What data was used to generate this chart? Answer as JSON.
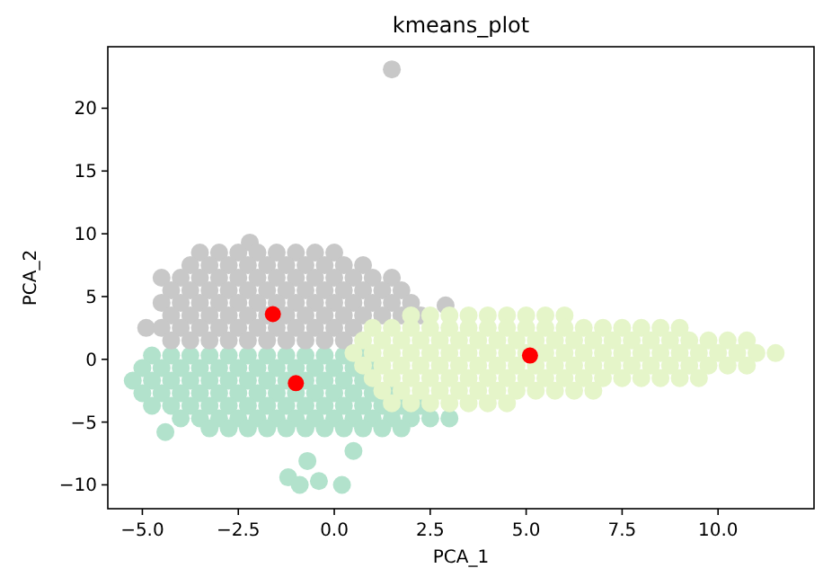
{
  "chart_data": {
    "type": "scatter",
    "title": "kmeans_plot",
    "xlabel": "PCA_1",
    "ylabel": "PCA_2",
    "marker": "circle",
    "grid": false,
    "xlim": [
      -5.9,
      12.5
    ],
    "ylim": [
      -11.9,
      24.9
    ],
    "xticks": [
      {
        "value": -5,
        "label": "−5.0"
      },
      {
        "value": -2.5,
        "label": "−2.5"
      },
      {
        "value": 0,
        "label": "0.0"
      },
      {
        "value": 2.5,
        "label": "2.5"
      },
      {
        "value": 5,
        "label": "5.0"
      },
      {
        "value": 7.5,
        "label": "7.5"
      },
      {
        "value": 10,
        "label": "10.0"
      }
    ],
    "yticks": [
      {
        "value": -10,
        "label": "−10"
      },
      {
        "value": -5,
        "label": "−5"
      },
      0,
      5,
      10,
      15,
      20
    ],
    "series": [
      {
        "color": "#b2e2cc",
        "x": [
          -4.75,
          -4.25,
          -3.75,
          -3.25,
          -2.75,
          -2.25,
          -1.75,
          -1.25,
          -0.75,
          -0.25,
          0.25,
          0.75,
          -5,
          -4.5,
          -4,
          -3.5,
          -3,
          -2.5,
          -2,
          -1.5,
          -1,
          -0.5,
          0,
          0.5,
          1,
          -5.25,
          -4.75,
          -4.25,
          -3.75,
          -3.25,
          -2.75,
          -2.25,
          -1.75,
          -1.25,
          -0.75,
          -0.25,
          0.25,
          0.75,
          -5,
          -4.5,
          -4,
          -3.5,
          -3,
          -2.5,
          -2,
          -1.5,
          -1,
          -0.5,
          0,
          0.5,
          1,
          1.5,
          -4.75,
          -4.25,
          -3.75,
          -3.25,
          -2.75,
          -2.25,
          -1.75,
          -1.25,
          -0.75,
          -0.25,
          0.25,
          0.75,
          1.25,
          1.75,
          2.25,
          -4,
          -3.5,
          -3,
          -2.5,
          -2,
          -1.5,
          -1,
          -0.5,
          0,
          0.5,
          1,
          1.5,
          2,
          2.5,
          3,
          -3.25,
          -2.75,
          -2.25,
          -1.75,
          -1.25,
          -0.75,
          -0.25,
          0.25,
          0.75,
          1.25,
          1.75,
          -4.4,
          -0.7,
          -1.2,
          -0.9,
          -0.4,
          0.2,
          0.5
        ],
        "values": [
          0.3,
          0.3,
          0.3,
          0.3,
          0.3,
          0.3,
          0.3,
          0.3,
          0.3,
          0.3,
          0.3,
          0.3,
          -0.7,
          -0.7,
          -0.7,
          -0.7,
          -0.7,
          -0.7,
          -0.7,
          -0.7,
          -0.7,
          -0.7,
          -0.7,
          -0.7,
          -0.7,
          -1.7,
          -1.7,
          -1.7,
          -1.7,
          -1.7,
          -1.7,
          -1.7,
          -1.7,
          -1.7,
          -1.7,
          -1.7,
          -1.7,
          -1.7,
          -2.7,
          -2.7,
          -2.7,
          -2.7,
          -2.7,
          -2.7,
          -2.7,
          -2.7,
          -2.7,
          -2.7,
          -2.7,
          -2.7,
          -2.7,
          -2.7,
          -3.7,
          -3.7,
          -3.7,
          -3.7,
          -3.7,
          -3.7,
          -3.7,
          -3.7,
          -3.7,
          -3.7,
          -3.7,
          -3.7,
          -3.7,
          -3.7,
          -3.7,
          -4.7,
          -4.7,
          -4.7,
          -4.7,
          -4.7,
          -4.7,
          -4.7,
          -4.7,
          -4.7,
          -4.7,
          -4.7,
          -4.7,
          -4.7,
          -4.7,
          -4.7,
          -5.5,
          -5.5,
          -5.5,
          -5.5,
          -5.5,
          -5.5,
          -5.5,
          -5.5,
          -5.5,
          -5.5,
          -5.5,
          -5.8,
          -8.1,
          -9.4,
          -10,
          -9.7,
          -10,
          -7.3
        ]
      },
      {
        "color": "#c8c8c8",
        "x": [
          -2.2,
          -3.5,
          -3,
          -2.5,
          -2,
          -1.5,
          -1,
          -0.5,
          0,
          -3.75,
          -3.25,
          -2.75,
          -2.25,
          -1.75,
          -1.25,
          -0.75,
          -0.25,
          0.25,
          0.75,
          -4.5,
          -4,
          -3.5,
          -3,
          -2.5,
          -2,
          -1.5,
          -1,
          -0.5,
          0,
          0.5,
          1,
          1.5,
          -4.25,
          -3.75,
          -3.25,
          -2.75,
          -2.25,
          -1.75,
          -1.25,
          -0.75,
          -0.25,
          0.25,
          0.75,
          1.25,
          1.75,
          -4.5,
          -4,
          -3.5,
          -3,
          -2.5,
          -2,
          -1.5,
          -1,
          -0.5,
          0,
          0.5,
          1,
          1.5,
          2,
          -4.25,
          -3.75,
          -3.25,
          -2.75,
          -2.25,
          -1.75,
          -1.25,
          -0.75,
          -0.25,
          0.25,
          0.75,
          1.25,
          1.75,
          2.25,
          2.9,
          -4.9,
          -4.5,
          -4,
          -3.5,
          -3,
          -2.5,
          -2,
          -1.5,
          -1,
          -0.5,
          0,
          0.5,
          -4.25,
          -3.75,
          -3.25,
          -2.75,
          -2.25,
          -1.75,
          -1.25,
          -0.75,
          -0.25,
          0.25,
          1.5
        ],
        "values": [
          9.3,
          8.5,
          8.5,
          8.5,
          8.5,
          8.5,
          8.5,
          8.5,
          8.5,
          7.5,
          7.5,
          7.5,
          7.5,
          7.5,
          7.5,
          7.5,
          7.5,
          7.5,
          7.5,
          6.5,
          6.5,
          6.5,
          6.5,
          6.5,
          6.5,
          6.5,
          6.5,
          6.5,
          6.5,
          6.5,
          6.5,
          6.5,
          5.5,
          5.5,
          5.5,
          5.5,
          5.5,
          5.5,
          5.5,
          5.5,
          5.5,
          5.5,
          5.5,
          5.5,
          5.5,
          4.5,
          4.5,
          4.5,
          4.5,
          4.5,
          4.5,
          4.5,
          4.5,
          4.5,
          4.5,
          4.5,
          4.5,
          4.5,
          4.5,
          3.5,
          3.5,
          3.5,
          3.5,
          3.5,
          3.5,
          3.5,
          3.5,
          3.5,
          3.5,
          3.5,
          3.5,
          3.5,
          3.5,
          4.3,
          2.5,
          2.5,
          2.5,
          2.5,
          2.5,
          2.5,
          2.5,
          2.5,
          2.5,
          2.5,
          2.5,
          2.5,
          1.5,
          1.5,
          1.5,
          1.5,
          1.5,
          1.5,
          1.5,
          1.5,
          1.5,
          1.5,
          23.1
        ]
      },
      {
        "color": "#e5f5c9",
        "x": [
          2,
          2.5,
          3,
          3.5,
          4,
          4.5,
          5,
          5.5,
          6,
          1,
          1.5,
          2,
          2.5,
          3,
          3.5,
          4,
          4.5,
          5,
          5.5,
          6,
          6.5,
          7,
          7.5,
          8,
          8.5,
          9,
          0.75,
          1.25,
          1.75,
          2.25,
          2.75,
          3.25,
          3.75,
          4.25,
          4.75,
          5.25,
          5.75,
          6.25,
          6.75,
          7.25,
          7.75,
          8.25,
          8.75,
          9.25,
          9.75,
          10.25,
          10.75,
          0.5,
          1,
          1.5,
          2,
          2.5,
          3,
          3.5,
          4,
          4.5,
          5,
          5.5,
          6,
          6.5,
          7,
          7.5,
          8,
          8.5,
          9,
          9.5,
          10,
          10.5,
          11,
          11.5,
          0.75,
          1.25,
          1.75,
          2.25,
          2.75,
          3.25,
          3.75,
          4.25,
          4.75,
          5.25,
          5.75,
          6.25,
          6.75,
          7.25,
          7.75,
          8.25,
          8.75,
          9.25,
          9.75,
          10.25,
          10.75,
          1,
          1.5,
          2,
          2.5,
          3,
          3.5,
          4,
          4.5,
          5,
          5.5,
          6,
          6.5,
          7,
          7.5,
          8,
          8.5,
          9,
          9.5,
          1.25,
          1.75,
          2.25,
          2.75,
          3.25,
          3.75,
          4.25,
          4.75,
          5.25,
          5.75,
          6.25,
          6.75,
          1.5,
          2,
          2.5,
          3,
          3.5,
          4,
          4.5
        ],
        "values": [
          3.5,
          3.5,
          3.5,
          3.5,
          3.5,
          3.5,
          3.5,
          3.5,
          3.5,
          2.5,
          2.5,
          2.5,
          2.5,
          2.5,
          2.5,
          2.5,
          2.5,
          2.5,
          2.5,
          2.5,
          2.5,
          2.5,
          2.5,
          2.5,
          2.5,
          2.5,
          1.5,
          1.5,
          1.5,
          1.5,
          1.5,
          1.5,
          1.5,
          1.5,
          1.5,
          1.5,
          1.5,
          1.5,
          1.5,
          1.5,
          1.5,
          1.5,
          1.5,
          1.5,
          1.5,
          1.5,
          1.5,
          0.5,
          0.5,
          0.5,
          0.5,
          0.5,
          0.5,
          0.5,
          0.5,
          0.5,
          0.5,
          0.5,
          0.5,
          0.5,
          0.5,
          0.5,
          0.5,
          0.5,
          0.5,
          0.5,
          0.5,
          0.5,
          0.5,
          0.5,
          -0.5,
          -0.5,
          -0.5,
          -0.5,
          -0.5,
          -0.5,
          -0.5,
          -0.5,
          -0.5,
          -0.5,
          -0.5,
          -0.5,
          -0.5,
          -0.5,
          -0.5,
          -0.5,
          -0.5,
          -0.5,
          -0.5,
          -0.5,
          -0.5,
          -1.5,
          -1.5,
          -1.5,
          -1.5,
          -1.5,
          -1.5,
          -1.5,
          -1.5,
          -1.5,
          -1.5,
          -1.5,
          -1.5,
          -1.5,
          -1.5,
          -1.5,
          -1.5,
          -1.5,
          -1.5,
          -2.5,
          -2.5,
          -2.5,
          -2.5,
          -2.5,
          -2.5,
          -2.5,
          -2.5,
          -2.5,
          -2.5,
          -2.5,
          -2.5,
          -3.5,
          -3.5,
          -3.5,
          -3.5,
          -3.5,
          -3.5,
          -3.5
        ]
      },
      {
        "color": "#ff0000",
        "x": [
          -1.6,
          -1.0,
          5.1
        ],
        "values": [
          3.6,
          -1.9,
          0.3
        ]
      }
    ]
  }
}
